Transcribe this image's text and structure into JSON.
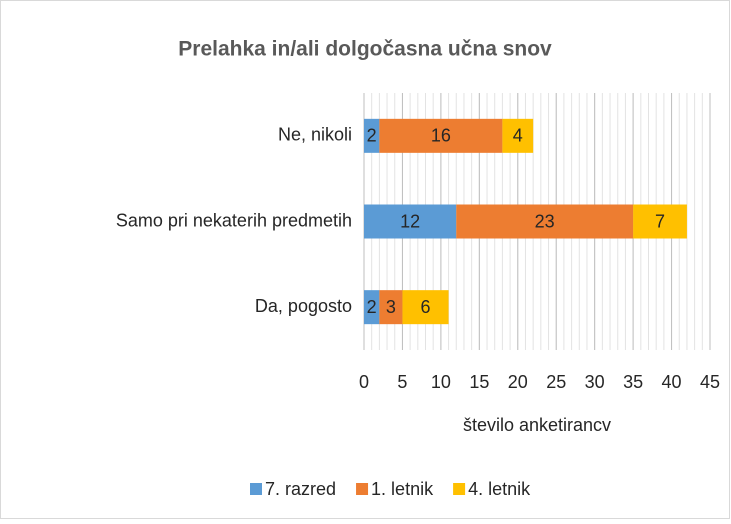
{
  "chart_data": {
    "type": "stacked_barh",
    "title": "Prelahka in/ali dolgočasna učna snov",
    "categories": [
      "Ne, nikoli",
      "Samo pri nekaterih predmetih",
      "Da, pogosto"
    ],
    "series": [
      {
        "name": "7. razred",
        "color": "#5b9bd5",
        "values": [
          2,
          12,
          2
        ]
      },
      {
        "name": "1. letnik",
        "color": "#ed7d31",
        "values": [
          16,
          23,
          3
        ]
      },
      {
        "name": "4. letnik",
        "color": "#ffc000",
        "values": [
          4,
          7,
          6
        ]
      }
    ],
    "xlabel": "število anketirancv",
    "xlim": [
      0,
      45
    ],
    "xticks": [
      0,
      5,
      10,
      15,
      20,
      25,
      30,
      35,
      40,
      45
    ],
    "grid": true,
    "minor_grid": true,
    "legend": "bottom"
  }
}
